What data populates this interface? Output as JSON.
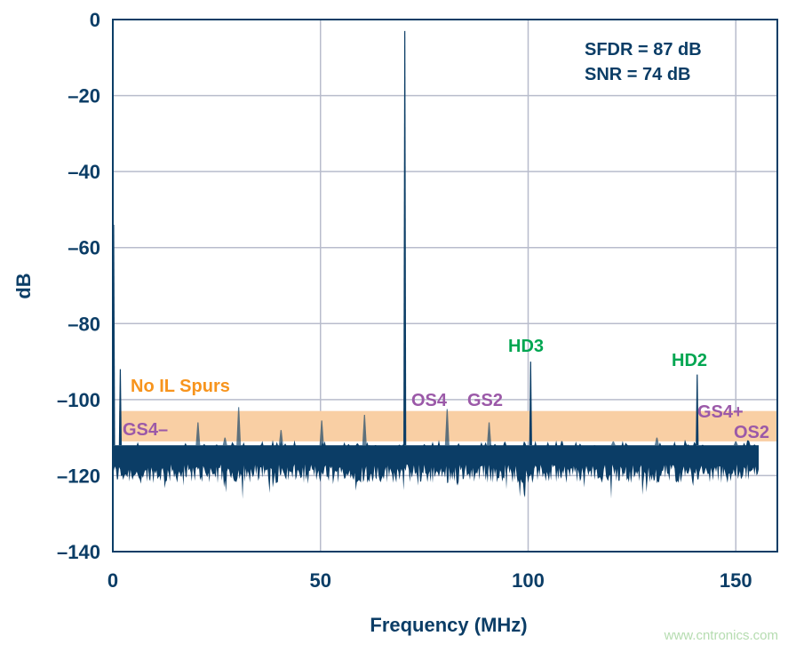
{
  "chart_data": {
    "type": "line",
    "title": "",
    "xlabel": "Frequency (MHz)",
    "ylabel": "dB",
    "xlim": [
      0,
      160
    ],
    "ylim": [
      -140,
      0
    ],
    "xticks": [
      0,
      50,
      100,
      150
    ],
    "yticks": [
      0,
      -20,
      -40,
      -60,
      -80,
      -100,
      -120,
      -140
    ],
    "xtick_labels": [
      "0",
      "50",
      "100",
      "150"
    ],
    "ytick_labels": [
      "0",
      "–20",
      "–40",
      "–60",
      "–80",
      "–100",
      "–120",
      "–140"
    ],
    "grid": true,
    "noise_floor_db": [
      -122,
      -112
    ],
    "noise_end_mhz": 155.5,
    "spurs": [
      {
        "x": 0.2,
        "y": -54
      },
      {
        "x": 1.8,
        "y": -92
      },
      {
        "x": 20.5,
        "y": -106
      },
      {
        "x": 27,
        "y": -110
      },
      {
        "x": 30.3,
        "y": -102
      },
      {
        "x": 40.5,
        "y": -108
      },
      {
        "x": 50.3,
        "y": -105.5
      },
      {
        "x": 60.6,
        "y": -104
      },
      {
        "x": 70.3,
        "y": -3
      },
      {
        "x": 80.5,
        "y": -102.5
      },
      {
        "x": 90.6,
        "y": -106
      },
      {
        "x": 100.6,
        "y": -90
      },
      {
        "x": 120.5,
        "y": -111
      },
      {
        "x": 131,
        "y": -110
      },
      {
        "x": 140.7,
        "y": -93.4
      },
      {
        "x": 150,
        "y": -111
      }
    ],
    "band": {
      "x": [
        1.5,
        160
      ],
      "y": [
        -111,
        -103
      ],
      "color": "#f9cfa4"
    },
    "annotations": {
      "metrics": [
        "SFDR = 87 dB",
        "SNR = 74 dB"
      ],
      "no_il_spurs": "No IL Spurs",
      "hd3": "HD3",
      "hd2": "HD2",
      "gs4_minus": "GS4–",
      "os4": "OS4",
      "gs2": "GS2",
      "gs4_plus": "GS4+",
      "os2": "OS2"
    },
    "colors": {
      "trace": "#0b3d66",
      "axis_text": "#0b3d66",
      "harmonic": "#00a651",
      "spur_label": "#9b59a8",
      "il_label": "#f7941d",
      "grid": "#b8bccc"
    }
  },
  "watermark": "www.cntronics.com"
}
